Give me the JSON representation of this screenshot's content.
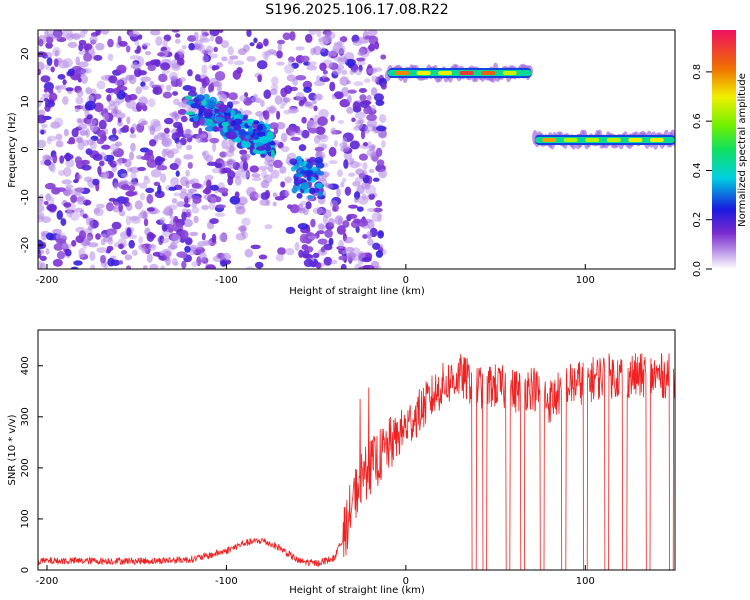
{
  "title": "S196.2025.106.17.08.R22",
  "chart_data": [
    {
      "type": "heatmap",
      "xlabel": "Height of straight line (km)",
      "ylabel": "Frequency (Hz)",
      "xlim": [
        -205,
        150
      ],
      "ylim": [
        -25,
        25
      ],
      "x_ticks": [
        "-200",
        "-100",
        "0",
        "100"
      ],
      "y_ticks": [
        "20",
        "10",
        "0",
        "-10",
        "-20"
      ],
      "colorbar": {
        "label": "Normalized spectral amplitude",
        "range": [
          0.0,
          0.97
        ],
        "ticks": [
          "0.0",
          "0.2",
          "0.4",
          "0.6",
          "0.8"
        ]
      },
      "features": [
        {
          "name": "noise band",
          "x_range": [
            -205,
            -12
          ]
        },
        {
          "name": "descending trace",
          "x": [
            -120,
            -100,
            -85,
            -75
          ],
          "y": [
            9,
            6,
            3,
            1
          ]
        },
        {
          "name": "cluster",
          "x": [
            -55
          ],
          "y": [
            -6
          ]
        },
        {
          "name": "upper tone",
          "x_range": [
            -10,
            70
          ],
          "y": 16
        },
        {
          "name": "lower tone",
          "x_range": [
            72,
            150
          ],
          "y": 2
        }
      ]
    },
    {
      "type": "line",
      "xlabel": "Height of straight line (km)",
      "ylabel": "SNR (10 * v/v)",
      "xlim": [
        -205,
        150
      ],
      "ylim": [
        0,
        470
      ],
      "x_ticks": [
        "-200",
        "-100",
        "0",
        "100"
      ],
      "y_ticks": [
        "0",
        "100",
        "200",
        "300",
        "400"
      ],
      "series": [
        {
          "color": "#ee2222",
          "x": [
            -205,
            -180,
            -160,
            -140,
            -120,
            -110,
            -100,
            -90,
            -80,
            -70,
            -60,
            -50,
            -40,
            -35,
            -30,
            -25,
            -20,
            -10,
            0,
            10,
            20,
            30,
            40,
            50,
            60,
            70,
            80,
            90,
            100,
            110,
            120,
            130,
            140,
            150
          ],
          "y": [
            15,
            15,
            15,
            15,
            18,
            25,
            35,
            50,
            55,
            40,
            15,
            10,
            20,
            60,
            130,
            180,
            200,
            240,
            280,
            320,
            360,
            380,
            360,
            360,
            350,
            360,
            330,
            360,
            370,
            380,
            380,
            380,
            380,
            380
          ],
          "dropouts_to_zero_at_x": [
            38,
            44,
            57,
            65,
            76,
            88,
            100,
            112,
            122,
            135,
            148
          ]
        }
      ]
    }
  ]
}
